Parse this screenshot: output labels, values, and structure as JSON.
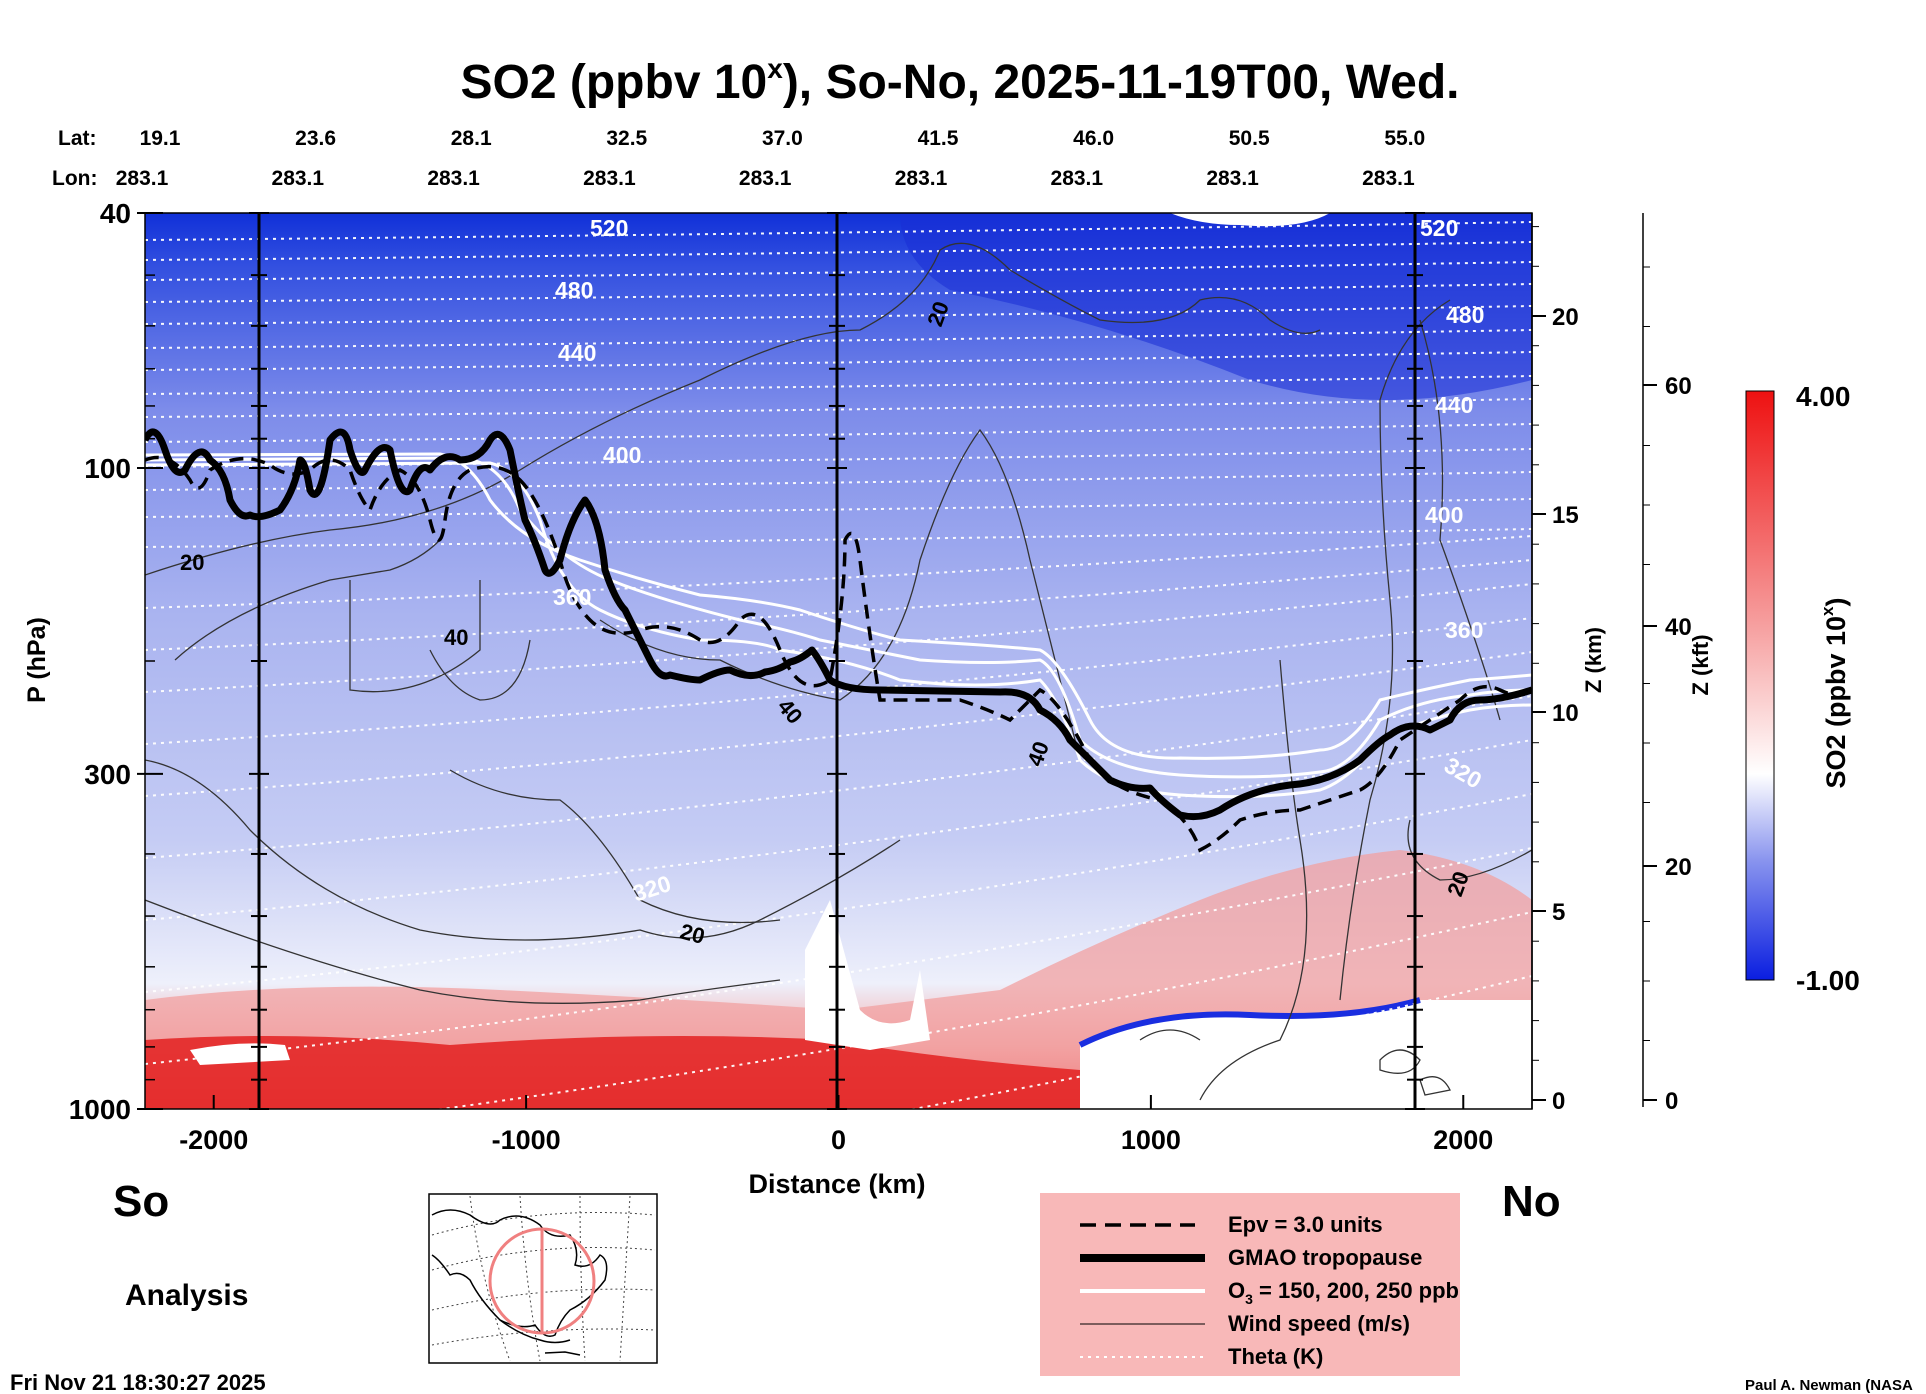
{
  "chart_data": {
    "type": "heatmap",
    "title_main": "SO2 (ppbv 10",
    "title_sup": "x",
    "title_rest": "), So-No, 2025-11-19T00, Wed.",
    "xlabel": "Distance (km)",
    "ylabel": "P (hPa)",
    "xlim": [
      -2220,
      2220
    ],
    "y_ticks": [
      "40",
      "100",
      "300",
      "1000"
    ],
    "x_ticks": [
      {
        "v": -2000,
        "label": "-2000"
      },
      {
        "v": -1000,
        "label": "-1000"
      },
      {
        "v": 0,
        "label": "0"
      },
      {
        "v": 1000,
        "label": "1000"
      },
      {
        "v": 2000,
        "label": "2000"
      }
    ],
    "lat_label": "Lat:",
    "lon_label": "Lon:",
    "lat_ticks": [
      "19.1",
      "23.6",
      "28.1",
      "32.5",
      "37.0",
      "41.5",
      "46.0",
      "50.5",
      "55.0"
    ],
    "lon_ticks": [
      "283.1",
      "283.1",
      "283.1",
      "283.1",
      "283.1",
      "283.1",
      "283.1",
      "283.1",
      "283.1"
    ],
    "z_km_label": "Z (km)",
    "z_km_ticks": [
      "0",
      "5",
      "10",
      "15",
      "20"
    ],
    "z_kft_label": "Z (kft)",
    "z_kft_ticks": [
      "0",
      "20",
      "40",
      "60"
    ],
    "colorbar": {
      "label_main": "SO2 (ppbv 10",
      "label_sup": "x",
      "label_end": ")",
      "max_label": "4.00",
      "min_label": "-1.00",
      "min": -1.0,
      "max": 4.0,
      "colors": {
        "low": "#0a1ee0",
        "mid": "#ffffff",
        "high": "#ee1111"
      }
    },
    "left_end": "So",
    "right_end": "No",
    "analysis_label": "Analysis",
    "theta_labels": [
      "520",
      "480",
      "440",
      "400",
      "360",
      "320",
      "520",
      "480",
      "440",
      "400",
      "360",
      "320"
    ],
    "wind_labels": [
      "20",
      "20",
      "40",
      "40",
      "40",
      "20",
      "20"
    ],
    "legend": [
      {
        "label": "Epv = 3.0 units",
        "style": "dashed"
      },
      {
        "label": "GMAO tropopause",
        "style": "thick"
      },
      {
        "label": "O",
        "sub": "3",
        "rest": " = 150, 200, 250 ppb",
        "style": "white"
      },
      {
        "label": "Wind speed (m/s)",
        "style": "thin"
      },
      {
        "label": "Theta (K)",
        "style": "dotted"
      }
    ],
    "legend_bg": "#f8b8b8",
    "timestamp": "Fri Nov 21 18:30:27 2025",
    "credit": "Paul A. Newman (NASA"
  }
}
